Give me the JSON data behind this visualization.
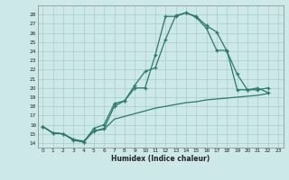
{
  "xlabel": "Humidex (Indice chaleur)",
  "background_color": "#cce8e8",
  "grid_color": "#aacccc",
  "line_color": "#2a7a6a",
  "xlim": [
    -0.5,
    23.5
  ],
  "ylim": [
    13.5,
    29.0
  ],
  "xticks": [
    0,
    1,
    2,
    3,
    4,
    5,
    6,
    7,
    8,
    9,
    10,
    11,
    12,
    13,
    14,
    15,
    16,
    17,
    18,
    19,
    20,
    21,
    22,
    23
  ],
  "yticks": [
    14,
    15,
    16,
    17,
    18,
    19,
    20,
    21,
    22,
    23,
    24,
    25,
    26,
    27,
    28
  ],
  "line1_x": [
    0,
    1,
    2,
    3,
    4,
    5,
    6,
    7,
    8,
    9,
    10,
    11,
    12,
    13,
    14,
    15,
    16,
    17,
    18,
    19,
    20,
    21,
    22
  ],
  "line1_y": [
    15.8,
    15.1,
    15.0,
    14.3,
    14.1,
    15.6,
    16.0,
    18.3,
    18.6,
    20.3,
    21.8,
    22.2,
    25.3,
    27.9,
    28.2,
    27.8,
    26.8,
    26.1,
    24.0,
    21.5,
    19.8,
    19.8,
    20.0
  ],
  "line2_x": [
    0,
    1,
    2,
    3,
    4,
    5,
    6,
    7,
    8,
    9,
    10,
    11,
    12,
    13,
    14,
    15,
    16,
    17,
    18,
    19,
    20,
    21,
    22
  ],
  "line2_y": [
    15.8,
    15.1,
    15.0,
    14.4,
    14.1,
    15.3,
    15.6,
    18.0,
    18.6,
    20.0,
    20.0,
    23.6,
    27.8,
    27.8,
    28.2,
    27.7,
    26.5,
    24.1,
    24.1,
    19.8,
    19.8,
    20.0,
    19.5
  ],
  "line3_x": [
    0,
    1,
    2,
    3,
    4,
    5,
    6,
    7,
    8,
    9,
    10,
    11,
    12,
    13,
    14,
    15,
    16,
    17,
    18,
    19,
    20,
    21,
    22
  ],
  "line3_y": [
    15.8,
    15.1,
    15.0,
    14.4,
    14.2,
    15.3,
    15.5,
    16.6,
    16.9,
    17.2,
    17.5,
    17.8,
    18.0,
    18.2,
    18.4,
    18.5,
    18.7,
    18.8,
    18.9,
    19.0,
    19.1,
    19.2,
    19.4
  ]
}
